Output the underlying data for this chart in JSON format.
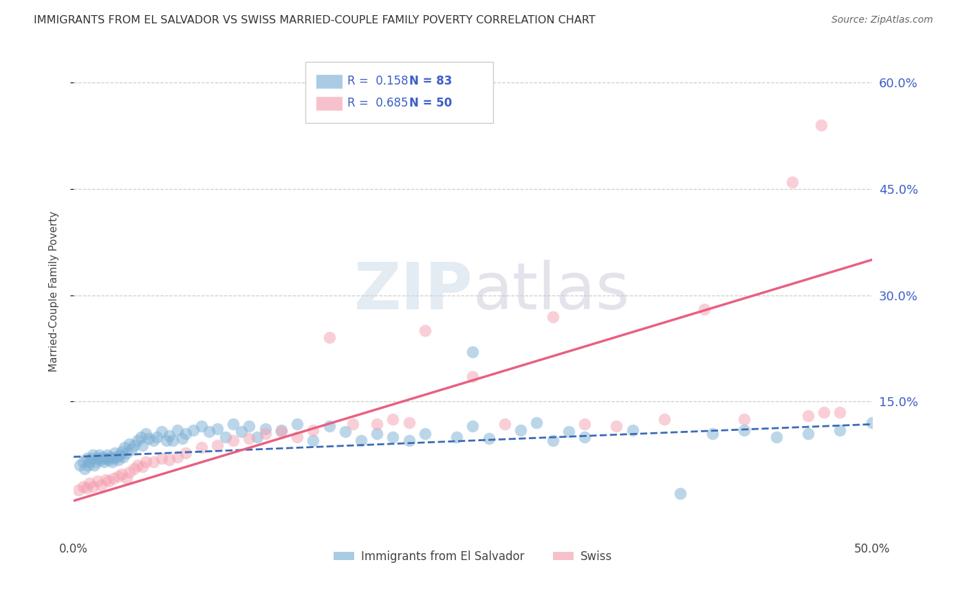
{
  "title": "IMMIGRANTS FROM EL SALVADOR VS SWISS MARRIED-COUPLE FAMILY POVERTY CORRELATION CHART",
  "source": "Source: ZipAtlas.com",
  "ylabel": "Married-Couple Family Poverty",
  "ytick_labels": [
    "60.0%",
    "45.0%",
    "30.0%",
    "15.0%"
  ],
  "ytick_values": [
    0.6,
    0.45,
    0.3,
    0.15
  ],
  "xlim": [
    0.0,
    0.5
  ],
  "ylim": [
    -0.04,
    0.65
  ],
  "legend1_label": "Immigrants from El Salvador",
  "legend2_label": "Swiss",
  "r1": 0.158,
  "n1": 83,
  "r2": 0.685,
  "n2": 50,
  "blue_color": "#7BAFD4",
  "pink_color": "#F4A0B0",
  "blue_line_color": "#3B6BB5",
  "pink_line_color": "#E86080",
  "watermark_zip": "ZIP",
  "watermark_atlas": "atlas",
  "blue_scatter_x": [
    0.004,
    0.006,
    0.007,
    0.008,
    0.009,
    0.01,
    0.011,
    0.012,
    0.013,
    0.014,
    0.015,
    0.016,
    0.017,
    0.018,
    0.019,
    0.02,
    0.021,
    0.022,
    0.023,
    0.024,
    0.025,
    0.026,
    0.027,
    0.028,
    0.029,
    0.03,
    0.031,
    0.032,
    0.033,
    0.035,
    0.036,
    0.038,
    0.04,
    0.042,
    0.043,
    0.045,
    0.047,
    0.05,
    0.052,
    0.055,
    0.058,
    0.06,
    0.062,
    0.065,
    0.068,
    0.07,
    0.075,
    0.08,
    0.085,
    0.09,
    0.095,
    0.1,
    0.105,
    0.11,
    0.115,
    0.12,
    0.13,
    0.14,
    0.15,
    0.16,
    0.17,
    0.18,
    0.19,
    0.2,
    0.21,
    0.22,
    0.24,
    0.25,
    0.26,
    0.28,
    0.3,
    0.32,
    0.35,
    0.38,
    0.4,
    0.42,
    0.44,
    0.46,
    0.48,
    0.5,
    0.29,
    0.31,
    0.25
  ],
  "blue_scatter_y": [
    0.06,
    0.065,
    0.055,
    0.07,
    0.06,
    0.065,
    0.07,
    0.075,
    0.06,
    0.065,
    0.07,
    0.075,
    0.068,
    0.072,
    0.065,
    0.07,
    0.075,
    0.068,
    0.072,
    0.065,
    0.07,
    0.078,
    0.072,
    0.068,
    0.075,
    0.08,
    0.072,
    0.085,
    0.078,
    0.09,
    0.082,
    0.088,
    0.095,
    0.1,
    0.088,
    0.105,
    0.098,
    0.095,
    0.1,
    0.108,
    0.095,
    0.102,
    0.095,
    0.11,
    0.098,
    0.105,
    0.11,
    0.115,
    0.108,
    0.112,
    0.1,
    0.118,
    0.108,
    0.115,
    0.1,
    0.112,
    0.11,
    0.118,
    0.095,
    0.115,
    0.108,
    0.095,
    0.105,
    0.1,
    0.095,
    0.105,
    0.1,
    0.22,
    0.098,
    0.11,
    0.095,
    0.1,
    0.11,
    0.02,
    0.105,
    0.11,
    0.1,
    0.105,
    0.11,
    0.12,
    0.12,
    0.108,
    0.115
  ],
  "pink_scatter_x": [
    0.003,
    0.006,
    0.008,
    0.01,
    0.012,
    0.015,
    0.017,
    0.02,
    0.022,
    0.025,
    0.028,
    0.03,
    0.033,
    0.035,
    0.038,
    0.04,
    0.043,
    0.045,
    0.05,
    0.055,
    0.06,
    0.065,
    0.07,
    0.08,
    0.09,
    0.1,
    0.11,
    0.12,
    0.13,
    0.14,
    0.15,
    0.16,
    0.175,
    0.19,
    0.2,
    0.21,
    0.22,
    0.25,
    0.27,
    0.3,
    0.32,
    0.34,
    0.37,
    0.395,
    0.42,
    0.45,
    0.46,
    0.468,
    0.47,
    0.48
  ],
  "pink_scatter_y": [
    0.025,
    0.03,
    0.028,
    0.035,
    0.03,
    0.038,
    0.032,
    0.04,
    0.038,
    0.042,
    0.045,
    0.048,
    0.042,
    0.05,
    0.055,
    0.06,
    0.058,
    0.065,
    0.065,
    0.07,
    0.068,
    0.072,
    0.078,
    0.085,
    0.088,
    0.095,
    0.098,
    0.105,
    0.108,
    0.1,
    0.11,
    0.24,
    0.118,
    0.118,
    0.125,
    0.12,
    0.25,
    0.185,
    0.118,
    0.27,
    0.118,
    0.115,
    0.125,
    0.28,
    0.125,
    0.46,
    0.13,
    0.54,
    0.135,
    0.135
  ]
}
